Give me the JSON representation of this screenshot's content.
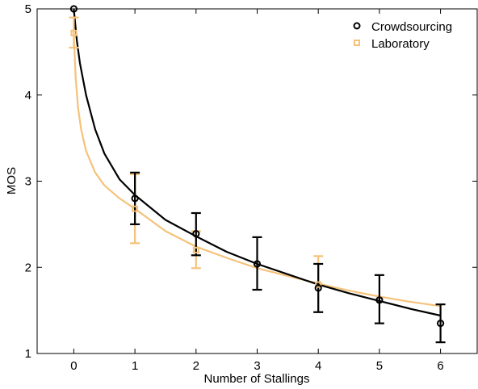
{
  "chart_data": {
    "type": "scatter",
    "title": "",
    "xlabel": "Number of Stallings",
    "ylabel": "MOS",
    "xlim": [
      -0.6,
      6.6
    ],
    "ylim": [
      1,
      5
    ],
    "xticks": [
      0,
      1,
      2,
      3,
      4,
      5,
      6
    ],
    "yticks": [
      1,
      2,
      3,
      4,
      5
    ],
    "grid": false,
    "legend_position": "top-right",
    "series": [
      {
        "name": "Crowdsourcing",
        "color": "#000000",
        "marker": "circle",
        "points": [
          {
            "x": 0,
            "y": 5.0,
            "err_low": 5.0,
            "err_high": 5.0
          },
          {
            "x": 1,
            "y": 2.8,
            "err_low": 2.5,
            "err_high": 3.1
          },
          {
            "x": 2,
            "y": 2.39,
            "err_low": 2.14,
            "err_high": 2.63
          },
          {
            "x": 3,
            "y": 2.04,
            "err_low": 1.74,
            "err_high": 2.35
          },
          {
            "x": 4,
            "y": 1.76,
            "err_low": 1.48,
            "err_high": 2.04
          },
          {
            "x": 5,
            "y": 1.62,
            "err_low": 1.35,
            "err_high": 1.91
          },
          {
            "x": 6,
            "y": 1.35,
            "err_low": 1.13,
            "err_high": 1.57
          }
        ],
        "fit_curve": [
          [
            0,
            5.0
          ],
          [
            0.05,
            4.63
          ],
          [
            0.1,
            4.37
          ],
          [
            0.2,
            4.0
          ],
          [
            0.35,
            3.6
          ],
          [
            0.5,
            3.32
          ],
          [
            0.75,
            3.02
          ],
          [
            1,
            2.84
          ],
          [
            1.5,
            2.55
          ],
          [
            2,
            2.36
          ],
          [
            2.5,
            2.18
          ],
          [
            3,
            2.04
          ],
          [
            3.5,
            1.92
          ],
          [
            4,
            1.8
          ],
          [
            4.5,
            1.7
          ],
          [
            5,
            1.61
          ],
          [
            5.5,
            1.52
          ],
          [
            6,
            1.44
          ]
        ]
      },
      {
        "name": "Laboratory",
        "color": "#F5C27A",
        "marker": "square",
        "points": [
          {
            "x": 0,
            "y": 4.72,
            "err_low": 4.55,
            "err_high": 4.9
          },
          {
            "x": 1,
            "y": 2.68,
            "err_low": 2.28,
            "err_high": 3.08
          },
          {
            "x": 2,
            "y": 2.2,
            "err_low": 1.99,
            "err_high": 2.42
          },
          {
            "x": 4,
            "y": 1.8,
            "err_low": 1.48,
            "err_high": 2.13
          }
        ],
        "fit_curve": [
          [
            0,
            4.72
          ],
          [
            0.03,
            4.2
          ],
          [
            0.07,
            3.85
          ],
          [
            0.12,
            3.6
          ],
          [
            0.2,
            3.35
          ],
          [
            0.35,
            3.1
          ],
          [
            0.5,
            2.95
          ],
          [
            0.75,
            2.8
          ],
          [
            1,
            2.68
          ],
          [
            1.5,
            2.42
          ],
          [
            2,
            2.24
          ],
          [
            2.5,
            2.11
          ],
          [
            3,
            1.99
          ],
          [
            3.5,
            1.9
          ],
          [
            4,
            1.81
          ],
          [
            4.5,
            1.73
          ],
          [
            5,
            1.66
          ],
          [
            5.5,
            1.6
          ],
          [
            6,
            1.55
          ]
        ]
      }
    ]
  }
}
